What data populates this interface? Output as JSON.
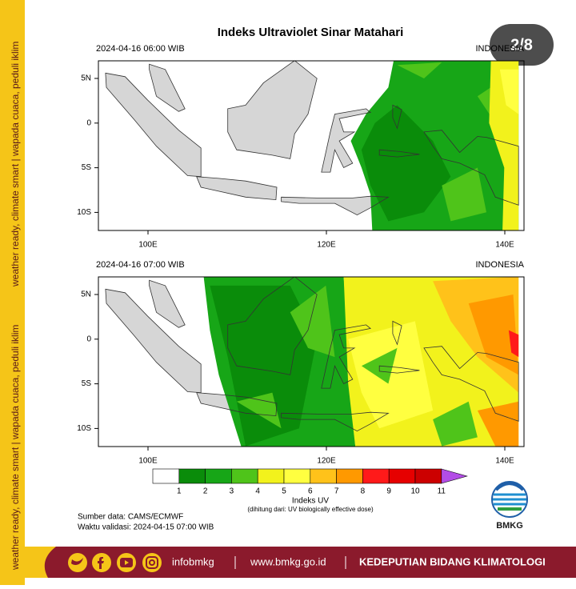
{
  "side_text": "weather ready, climate smart | wapada cuaca, peduli iklim",
  "badge": "2/8",
  "title": "Indeks Ultraviolet Sinar Matahari",
  "maps": [
    {
      "time": "2024-04-16  06:00 WIB",
      "region": "INDONESIA",
      "lat_labels": [
        "5N",
        "0",
        "5S",
        "10S"
      ],
      "lon_labels": [
        "100E",
        "120E",
        "140E"
      ]
    },
    {
      "time": "2024-04-16  07:00 WIB",
      "region": "INDONESIA",
      "lat_labels": [
        "5N",
        "0",
        "5S",
        "10S"
      ],
      "lon_labels": [
        "100E",
        "120E",
        "140E"
      ]
    }
  ],
  "colorbar": {
    "labels": [
      "1",
      "2",
      "3",
      "4",
      "5",
      "6",
      "7",
      "8",
      "9",
      "10",
      "11"
    ],
    "colors": [
      "#ffffff",
      "#0a8c0a",
      "#17a617",
      "#4fc41a",
      "#f2f21c",
      "#ffff40",
      "#ffc21a",
      "#ff9900",
      "#ff1a1a",
      "#e60000",
      "#cc0000",
      "#b34de6"
    ],
    "title": "Indeks UV",
    "subtitle": "(dihitung dari: UV biologically effective dose)"
  },
  "source": "Sumber data: CAMS/ECMWF",
  "validity": "Waktu validasi: 2024-04-15 07:00 WIB",
  "logo": "BMKG",
  "footer": {
    "handle": "infobmkg",
    "website": "www.bmkg.go.id",
    "unit": "KEDEPUTIAN BIDANG KLIMATOLOGI"
  }
}
